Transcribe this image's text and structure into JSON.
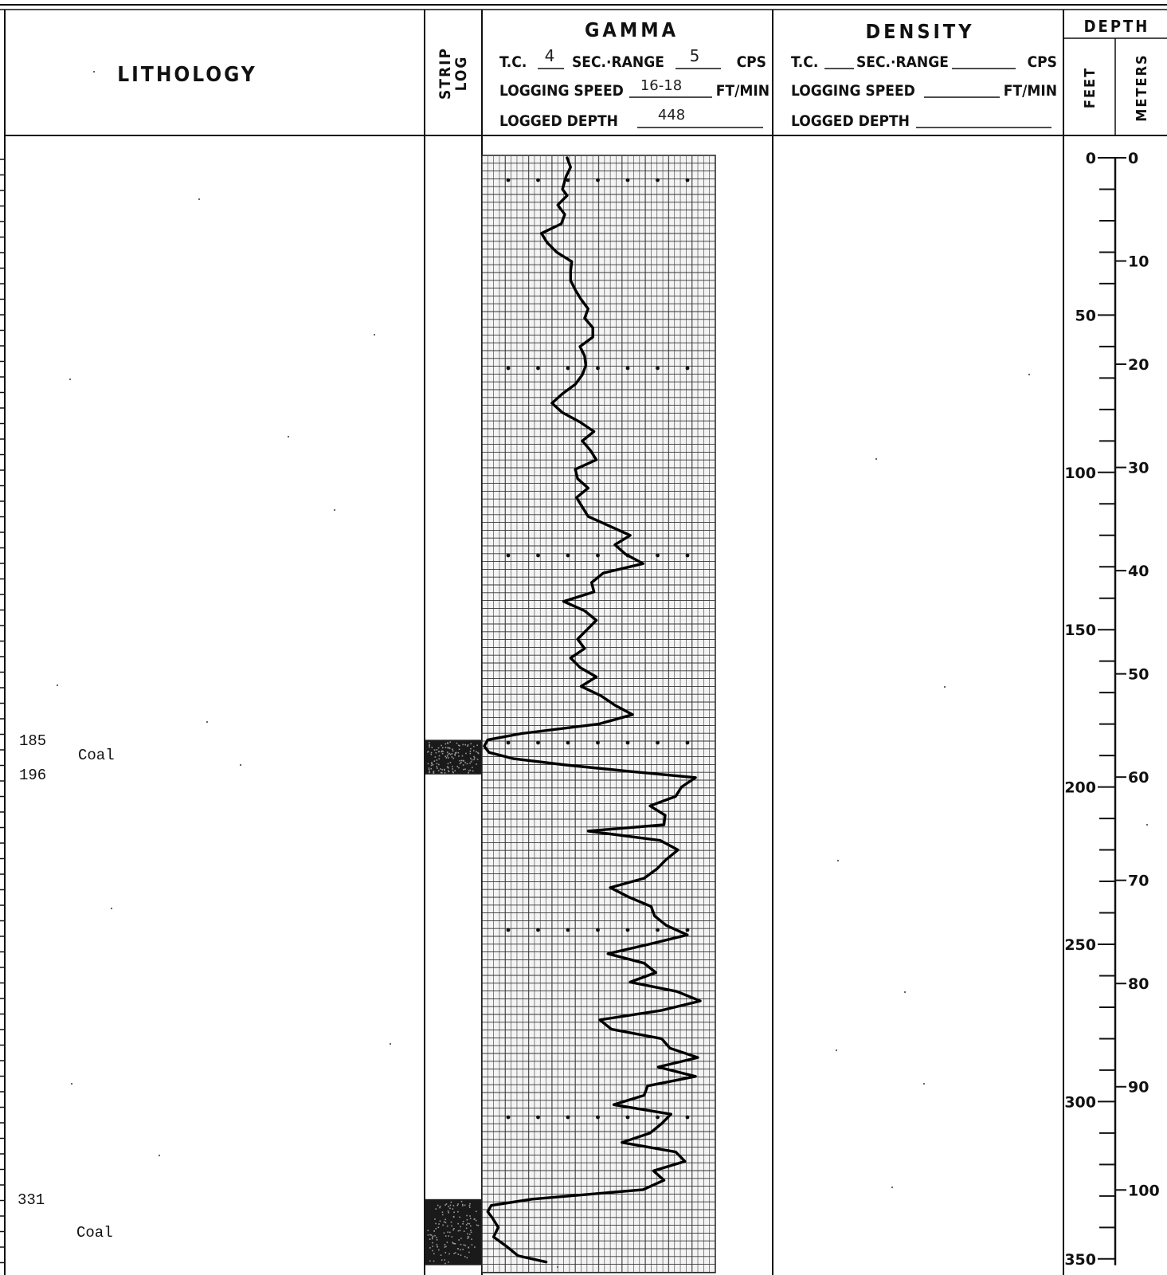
{
  "header": {
    "lithology_title": "LITHOLOGY",
    "strip_log_title_line1": "STRIP",
    "strip_log_title_line2": "LOG",
    "gamma": {
      "title": "GAMMA",
      "tc_label": "T.C.",
      "tc_value": "4",
      "sec_range_label": "SEC.·RANGE",
      "range_value": "5",
      "cps_label": "CPS",
      "logging_speed_label": "LOGGING SPEED",
      "logging_speed_value": "16-18",
      "ft_min_label": "FT/MIN",
      "logged_depth_label": "LOGGED DEPTH",
      "logged_depth_value": "448"
    },
    "density": {
      "title": "DENSITY",
      "tc_label": "T.C.",
      "sec_range_label": "SEC.·RANGE",
      "cps_label": "CPS",
      "logging_speed_label": "LOGGING SPEED",
      "ft_min_label": "FT/MIN",
      "logged_depth_label": "LOGGED DEPTH"
    },
    "depth": {
      "title": "DEPTH",
      "feet_label": "FEET",
      "meters_label": "METERS"
    }
  },
  "lithology": [
    {
      "top": "185",
      "bottom": "196",
      "name": "Coal"
    },
    {
      "top": "331",
      "bottom": "",
      "name": "Coal"
    }
  ],
  "strip_log": [
    {
      "top_ft": 185,
      "bottom_ft": 196,
      "type": "coal"
    },
    {
      "top_ft": 331,
      "bottom_ft": 352,
      "type": "coal"
    }
  ],
  "depth_scale": {
    "feet_labels": [
      "0",
      "50",
      "100",
      "150",
      "200",
      "250",
      "300",
      "350"
    ],
    "meter_labels": [
      "0",
      "10",
      "20",
      "30",
      "40",
      "50",
      "60",
      "70",
      "80",
      "90",
      "100"
    ]
  },
  "chart_data": {
    "type": "line",
    "y_axis": "depth (ft)",
    "ylim": [
      0,
      352
    ],
    "x_axis": "gamma response (chart divisions, 0 = left edge of track)",
    "xlim": [
      0,
      20
    ],
    "points": [
      [
        0,
        7.3
      ],
      [
        3,
        7.6
      ],
      [
        6,
        7.2
      ],
      [
        10,
        6.9
      ],
      [
        12,
        7.3
      ],
      [
        15,
        6.5
      ],
      [
        18,
        7.1
      ],
      [
        21,
        6.8
      ],
      [
        24,
        5.1
      ],
      [
        27,
        5.6
      ],
      [
        30,
        6.4
      ],
      [
        33,
        7.7
      ],
      [
        36,
        7.6
      ],
      [
        39,
        7.6
      ],
      [
        42,
        8.0
      ],
      [
        45,
        8.5
      ],
      [
        48,
        9.1
      ],
      [
        51,
        8.8
      ],
      [
        54,
        9.5
      ],
      [
        57,
        9.5
      ],
      [
        60,
        8.4
      ],
      [
        63,
        8.8
      ],
      [
        66,
        8.9
      ],
      [
        69,
        8.6
      ],
      [
        72,
        8.0
      ],
      [
        75,
        6.9
      ],
      [
        78,
        6.0
      ],
      [
        81,
        6.9
      ],
      [
        84,
        8.4
      ],
      [
        87,
        9.6
      ],
      [
        90,
        8.6
      ],
      [
        93,
        9.3
      ],
      [
        96,
        9.8
      ],
      [
        99,
        8.0
      ],
      [
        102,
        8.2
      ],
      [
        105,
        9.1
      ],
      [
        108,
        8.1
      ],
      [
        111,
        8.6
      ],
      [
        114,
        9.1
      ],
      [
        117,
        10.9
      ],
      [
        120,
        12.7
      ],
      [
        123,
        11.4
      ],
      [
        126,
        12.3
      ],
      [
        129,
        13.8
      ],
      [
        132,
        10.4
      ],
      [
        135,
        9.4
      ],
      [
        138,
        9.6
      ],
      [
        141,
        7.0
      ],
      [
        144,
        8.8
      ],
      [
        147,
        9.8
      ],
      [
        150,
        9.0
      ],
      [
        153,
        8.2
      ],
      [
        156,
        8.8
      ],
      [
        159,
        7.6
      ],
      [
        162,
        8.4
      ],
      [
        165,
        9.8
      ],
      [
        168,
        8.5
      ],
      [
        171,
        10.2
      ],
      [
        174,
        11.4
      ],
      [
        177,
        12.9
      ],
      [
        180,
        10.0
      ],
      [
        183,
        3.4
      ],
      [
        185,
        0.5
      ],
      [
        187,
        0.2
      ],
      [
        189,
        0.6
      ],
      [
        191,
        2.7
      ],
      [
        193,
        7.2
      ],
      [
        195,
        12.6
      ],
      [
        197,
        18.3
      ],
      [
        200,
        17.1
      ],
      [
        203,
        16.6
      ],
      [
        206,
        14.4
      ],
      [
        209,
        15.7
      ],
      [
        212,
        15.6
      ],
      [
        214,
        9.1
      ],
      [
        217,
        15.3
      ],
      [
        220,
        16.8
      ],
      [
        223,
        15.8
      ],
      [
        226,
        15.0
      ],
      [
        229,
        13.9
      ],
      [
        232,
        11.0
      ],
      [
        235,
        12.6
      ],
      [
        238,
        14.5
      ],
      [
        241,
        14.8
      ],
      [
        244,
        15.8
      ],
      [
        247,
        17.6
      ],
      [
        250,
        14.3
      ],
      [
        253,
        10.8
      ],
      [
        256,
        13.9
      ],
      [
        259,
        14.9
      ],
      [
        262,
        12.7
      ],
      [
        265,
        16.7
      ],
      [
        268,
        18.7
      ],
      [
        271,
        15.4
      ],
      [
        274,
        10.1
      ],
      [
        277,
        11.1
      ],
      [
        280,
        15.4
      ],
      [
        283,
        16.1
      ],
      [
        286,
        18.5
      ],
      [
        289,
        15.1
      ],
      [
        292,
        18.3
      ],
      [
        295,
        14.2
      ],
      [
        298,
        13.9
      ],
      [
        301,
        11.3
      ],
      [
        304,
        16.2
      ],
      [
        307,
        15.4
      ],
      [
        310,
        14.4
      ],
      [
        313,
        12.0
      ],
      [
        316,
        16.6
      ],
      [
        319,
        17.4
      ],
      [
        322,
        14.7
      ],
      [
        325,
        15.6
      ],
      [
        328,
        13.8
      ],
      [
        331,
        4.3
      ],
      [
        333,
        0.8
      ],
      [
        335,
        0.5
      ],
      [
        337,
        0.9
      ],
      [
        340,
        1.4
      ],
      [
        343,
        1.0
      ],
      [
        346,
        2.1
      ],
      [
        349,
        3.1
      ],
      [
        351,
        5.5
      ]
    ]
  }
}
